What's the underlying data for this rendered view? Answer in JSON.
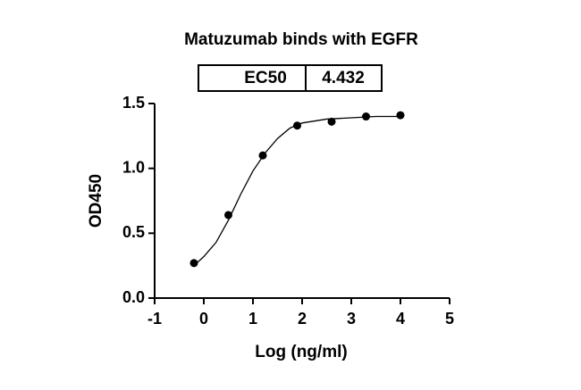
{
  "chart_data": {
    "type": "scatter",
    "title": "Matuzumab binds with EGFR",
    "annotation": {
      "label": "EC50",
      "value": 4.432
    },
    "x_label": "Log (ng/ml)",
    "y_label": "OD450",
    "xlim": [
      -1,
      5
    ],
    "xticks": [
      -1,
      0,
      1,
      2,
      3,
      4,
      5
    ],
    "ylim": [
      0,
      1.5
    ],
    "yticks": [
      {
        "value": 0,
        "label": "0.0"
      },
      {
        "value": 0.5,
        "label": "0.5"
      },
      {
        "value": 1,
        "label": "1.0"
      },
      {
        "value": 1.5,
        "label": "1.5"
      }
    ],
    "series": [
      {
        "color": "#000000",
        "style": "points",
        "x": [
          -0.2,
          0.5,
          1.2,
          1.9,
          2.6,
          3.3,
          4.0
        ],
        "values": [
          0.27,
          0.64,
          1.1,
          1.33,
          1.36,
          1.4,
          1.41
        ]
      },
      {
        "color": "#000000",
        "style": "line",
        "x": [
          -0.2,
          0,
          0.25,
          0.5,
          0.75,
          1.0,
          1.25,
          1.5,
          1.75,
          2.0,
          2.5,
          3.0,
          3.5,
          4.0
        ],
        "values": [
          0.25,
          0.32,
          0.43,
          0.6,
          0.8,
          0.98,
          1.12,
          1.23,
          1.31,
          1.35,
          1.38,
          1.39,
          1.4,
          1.4
        ]
      }
    ]
  }
}
